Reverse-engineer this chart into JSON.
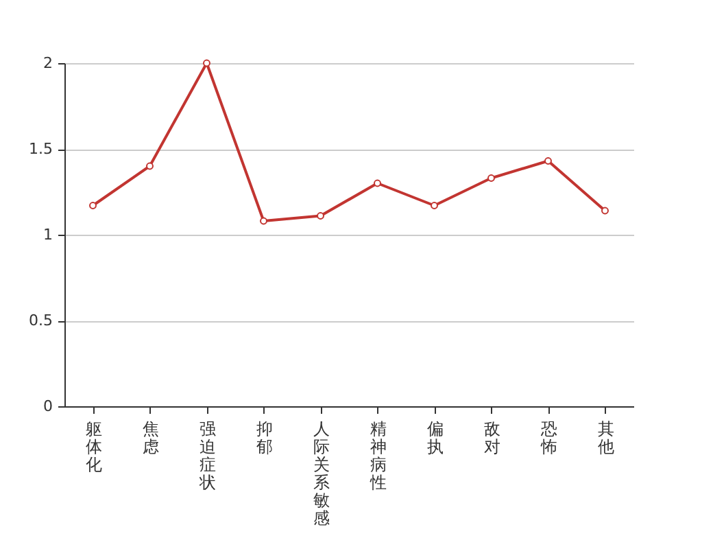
{
  "chart_data": {
    "type": "line",
    "categories": [
      "躯体化",
      "焦虑",
      "强迫症状",
      "抑郁",
      "人际关系敏感",
      "精神病性",
      "偏执",
      "敌对",
      "恐怖",
      "其他"
    ],
    "series": [
      {
        "color": "#c23531",
        "values": [
          1.17,
          1.4,
          2.0,
          1.08,
          1.11,
          1.3,
          1.17,
          1.33,
          1.43,
          1.14
        ]
      }
    ],
    "ylim": [
      0,
      2
    ],
    "yticks": [
      0,
      0.5,
      1,
      1.5,
      2
    ],
    "grid": "y",
    "marker": "circle",
    "line_style": "solid"
  }
}
